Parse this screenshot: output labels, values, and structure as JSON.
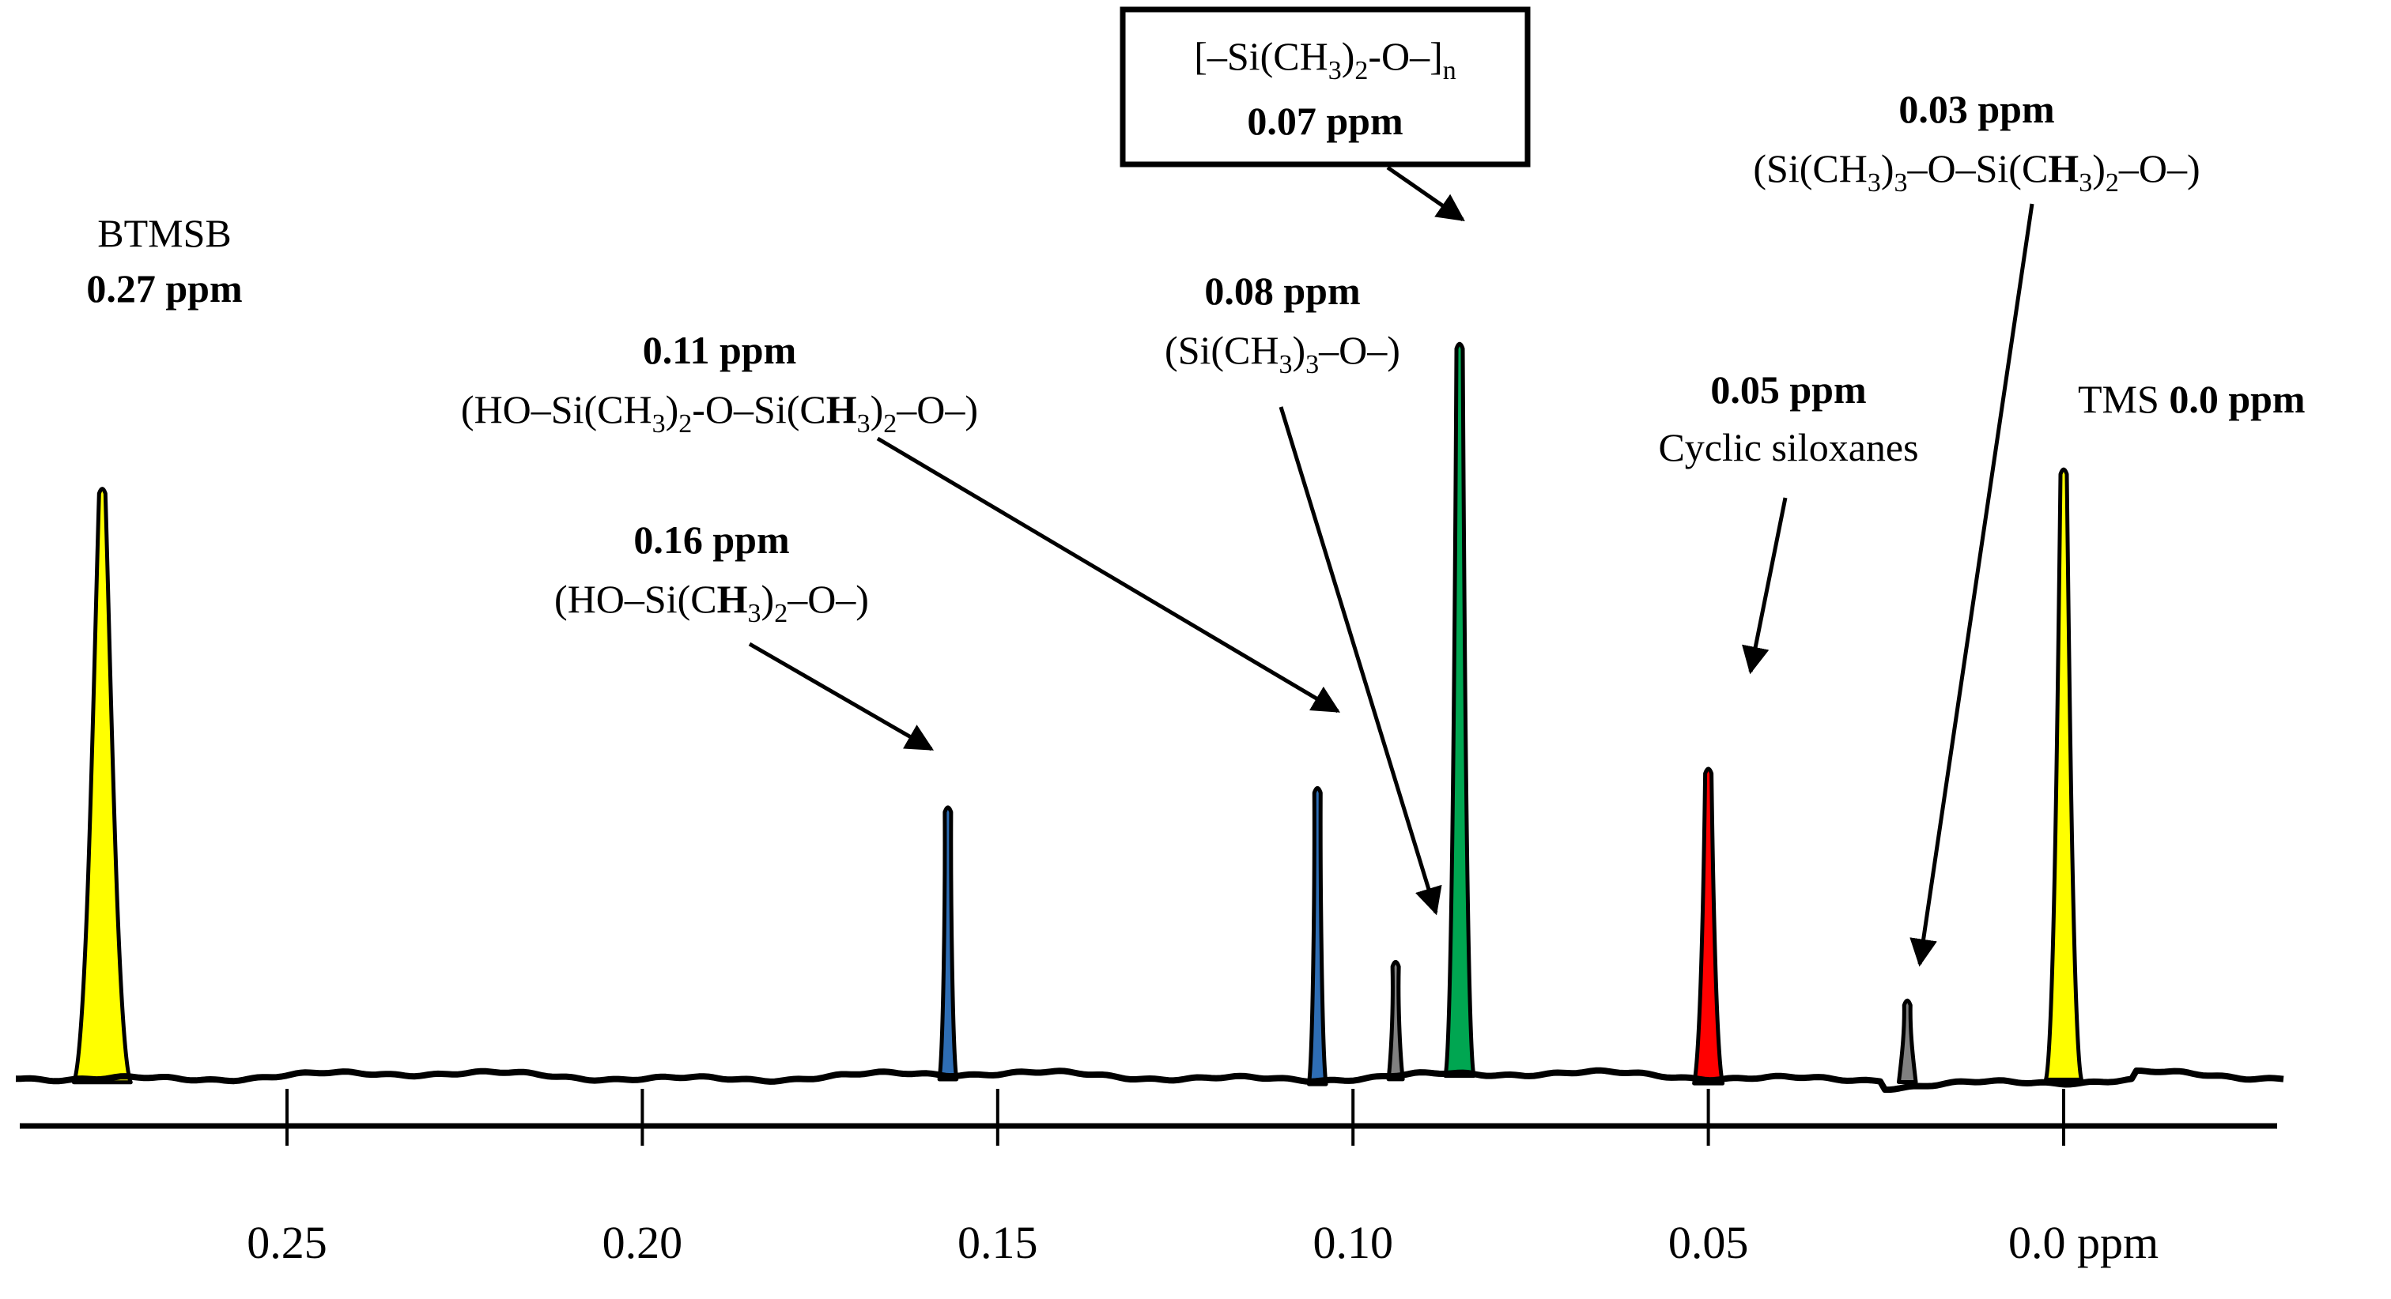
{
  "chart_data": {
    "type": "nmr-spectrum",
    "title": "",
    "xlabel": "ppm",
    "x_axis_direction": "descending",
    "xlim": [
      0.29,
      -0.03
    ],
    "x_ticks": [
      {
        "value": 0.25,
        "label": "0.25"
      },
      {
        "value": 0.2,
        "label": "0.20"
      },
      {
        "value": 0.15,
        "label": "0.15"
      },
      {
        "value": 0.1,
        "label": "0.10"
      },
      {
        "value": 0.05,
        "label": "0.05"
      },
      {
        "value": 0.0,
        "label": "0.0 ppm"
      }
    ],
    "ylim": [
      0,
      1
    ],
    "peaks": [
      {
        "id": "btmsb",
        "shift": 0.27,
        "plot_position": 0.276,
        "height": 0.61,
        "width": 0.004,
        "color": "#FFFF00"
      },
      {
        "id": "ho-si-o",
        "shift": 0.16,
        "plot_position": 0.157,
        "height": 0.28,
        "width": 0.0012,
        "color": "#2E6DB4"
      },
      {
        "id": "ho-si-o-si-o",
        "shift": 0.11,
        "plot_position": 0.105,
        "height": 0.3,
        "width": 0.0012,
        "color": "#2E6DB4"
      },
      {
        "id": "si-ch3-3-o",
        "shift": 0.08,
        "plot_position": 0.094,
        "height": 0.12,
        "width": 0.001,
        "color": "#808080"
      },
      {
        "id": "pdms",
        "shift": 0.07,
        "plot_position": 0.085,
        "height": 0.76,
        "width": 0.002,
        "color": "#00A651"
      },
      {
        "id": "cyclic",
        "shift": 0.05,
        "plot_position": 0.05,
        "height": 0.32,
        "width": 0.002,
        "color": "#FF0000"
      },
      {
        "id": "endgroup",
        "shift": 0.03,
        "plot_position": 0.022,
        "height": 0.08,
        "width": 0.0012,
        "color": "#808080"
      },
      {
        "id": "tms",
        "shift": 0.0,
        "plot_position": 0.0,
        "height": 0.63,
        "width": 0.0025,
        "color": "#FFFF00"
      }
    ],
    "annotations": {
      "btmsb": {
        "name": "BTMSB",
        "value": "0.27 ppm"
      },
      "ho_si_o": {
        "value": "0.16 ppm",
        "formula": [
          "(HO–Si(C",
          "H",
          "3",
          ")",
          "2",
          "–O–)"
        ]
      },
      "ho_si_o_si_o": {
        "value": "0.11 ppm",
        "formula": [
          "(HO–Si(CH",
          "3",
          ")",
          "2",
          "-O–Si(C",
          "H",
          "3",
          ")",
          "2",
          "–O–)"
        ]
      },
      "si_ch3_3_o": {
        "value": "0.08 ppm",
        "formula": [
          "(Si(CH",
          "3",
          ")",
          "3",
          "–O–)"
        ]
      },
      "pdms": {
        "value": "0.07 ppm",
        "formula": [
          "[–Si(CH",
          "3",
          ")",
          "2",
          "-O–]",
          "n"
        ]
      },
      "cyclic": {
        "value": "0.05 ppm",
        "name": "Cyclic siloxanes"
      },
      "endgroup": {
        "value": "0.03 ppm",
        "formula": [
          "(Si(CH",
          "3",
          ")",
          "3",
          "–O–Si(C",
          "H",
          "3",
          ")",
          "2",
          "–O–)"
        ]
      },
      "tms": {
        "name": "TMS",
        "value": "0.0 ppm"
      }
    }
  }
}
